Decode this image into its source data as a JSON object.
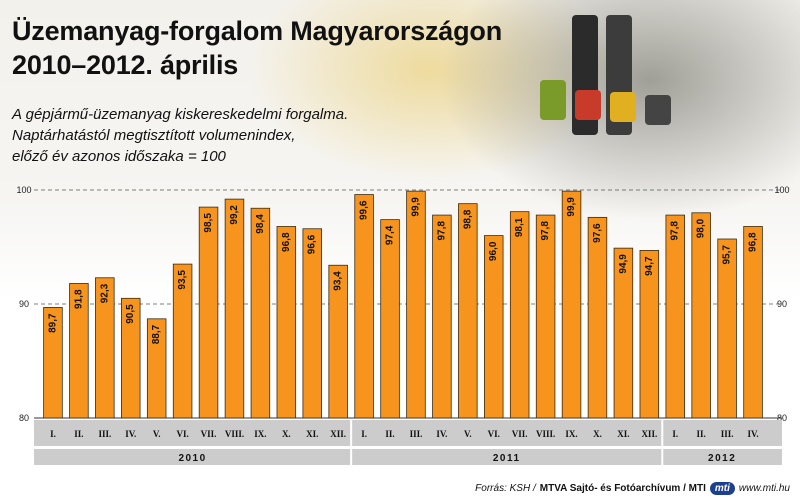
{
  "header": {
    "title_line1": "Üzemanyag-forgalom Magyarországon",
    "title_line2": "2010–2012. április"
  },
  "subtitle": {
    "line1": "A gépjármű-üzemanyag kiskereskedelmi forgalma.",
    "line2": "Naptárhatástól megtisztított volumenindex,",
    "line3": "előző év azonos időszaka = 100"
  },
  "footer": {
    "source_prefix": "Forrás: KSH /",
    "source_bold": "MTVA Sajtó- és Fotóarchívum / MTI",
    "logo_text": "mti",
    "url": "www.mti.hu"
  },
  "colors": {
    "bar": "#f7941d",
    "bar_stroke": "#3a2a10",
    "axis_band": "#cccccc",
    "grid": "#555555"
  },
  "chart_data": {
    "type": "bar",
    "title": "Üzemanyag-forgalom Magyarországon 2010–2012. április",
    "xlabel": "",
    "ylabel": "",
    "ylim": [
      80,
      100
    ],
    "yticks": [
      80,
      90,
      100
    ],
    "grid": true,
    "categories": [
      "I.",
      "II.",
      "III.",
      "IV.",
      "V.",
      "VI.",
      "VII.",
      "VIII.",
      "IX.",
      "X.",
      "XI.",
      "XII.",
      "I.",
      "II.",
      "III.",
      "IV.",
      "V.",
      "VI.",
      "VII.",
      "VIII.",
      "IX.",
      "X.",
      "XI.",
      "XII.",
      "I.",
      "II.",
      "III.",
      "IV."
    ],
    "values": [
      89.7,
      91.8,
      92.3,
      90.5,
      88.7,
      93.5,
      98.5,
      99.2,
      98.4,
      96.8,
      96.6,
      93.4,
      99.6,
      97.4,
      99.9,
      97.8,
      98.8,
      96.0,
      98.1,
      97.8,
      99.9,
      97.6,
      94.9,
      94.7,
      97.8,
      98.0,
      95.7,
      96.8
    ],
    "value_labels": [
      "89,7",
      "91,8",
      "92,3",
      "90,5",
      "88,7",
      "93,5",
      "98,5",
      "99,2",
      "98,4",
      "96,8",
      "96,6",
      "93,4",
      "99,6",
      "97,4",
      "99,9",
      "97,8",
      "98,8",
      "96,0",
      "98,1",
      "97,8",
      "99,9",
      "97,6",
      "94,9",
      "94,7",
      "97,8",
      "98,0",
      "95,7",
      "96,8"
    ],
    "groups": [
      {
        "label": "2010",
        "count": 12
      },
      {
        "label": "2011",
        "count": 12
      },
      {
        "label": "2012",
        "count": 4
      }
    ]
  }
}
